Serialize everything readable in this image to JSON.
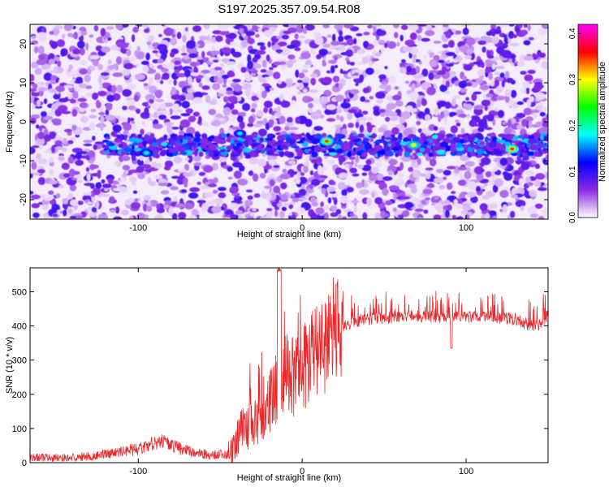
{
  "figure_title": "S197.2025.357.09.54.R08",
  "chart_data": [
    {
      "type": "heatmap",
      "title": "",
      "xlabel": "Height of straight line (km)",
      "ylabel": "Frequency (Hz)",
      "xlim": [
        -166,
        150
      ],
      "ylim": [
        -25,
        25
      ],
      "xticks": [
        -100,
        0,
        100
      ],
      "yticks": [
        -20,
        -10,
        0,
        10,
        20
      ],
      "xtick_labels": [
        "-100",
        "0",
        "100"
      ],
      "ytick_labels": [
        "-20",
        "-10",
        "0",
        "10",
        "20"
      ],
      "colorbar": {
        "label": "Normalized spectral amplitude",
        "range": [
          0,
          0.42
        ],
        "ticks": [
          0.0,
          0.1,
          0.2,
          0.3,
          0.4
        ],
        "tick_labels": [
          "0.0",
          "0.1",
          "0.2",
          "0.3",
          "0.4"
        ],
        "colormap": [
          "#ffffff",
          "#8a2be2",
          "#0000ff",
          "#00ffff",
          "#00ff00",
          "#ffff00",
          "#ff0000",
          "#ff00ff"
        ]
      },
      "signal_band": {
        "center_frequency": -6,
        "half_width": 2.5,
        "x_range": [
          -120,
          150
        ],
        "peak_spots": [
          {
            "x": -95,
            "y": -8,
            "value": 0.2
          },
          {
            "x": -38,
            "y": -3,
            "value": 0.18
          },
          {
            "x": 15,
            "y": -5,
            "value": 0.35
          },
          {
            "x": 68,
            "y": -6,
            "value": 0.3
          },
          {
            "x": 128,
            "y": -7,
            "value": 0.38
          }
        ]
      }
    },
    {
      "type": "line",
      "title": "",
      "xlabel": "Height of straight line (km)",
      "ylabel": "SNR (10 * v/v)",
      "xlim": [
        -166,
        150
      ],
      "ylim": [
        0,
        570
      ],
      "xticks": [
        -100,
        0,
        100
      ],
      "yticks": [
        0,
        100,
        200,
        300,
        400,
        500
      ],
      "xtick_labels": [
        "-100",
        "0",
        "100"
      ],
      "ytick_labels": [
        "0",
        "100",
        "200",
        "300",
        "400",
        "500"
      ],
      "line_color": "#e8282a",
      "x": [
        -166,
        -150,
        -130,
        -115,
        -100,
        -92,
        -85,
        -75,
        -65,
        -55,
        -45,
        -42,
        -38,
        -30,
        -22,
        -15,
        -10,
        -5,
        0,
        5,
        10,
        15,
        20,
        25,
        30,
        40,
        55,
        70,
        90,
        110,
        130,
        140,
        145,
        150
      ],
      "y": [
        15,
        14,
        18,
        28,
        40,
        55,
        60,
        42,
        28,
        22,
        26,
        40,
        90,
        110,
        150,
        230,
        260,
        250,
        270,
        300,
        330,
        360,
        385,
        400,
        410,
        420,
        425,
        428,
        425,
        428,
        420,
        400,
        405,
        430
      ]
    }
  ]
}
